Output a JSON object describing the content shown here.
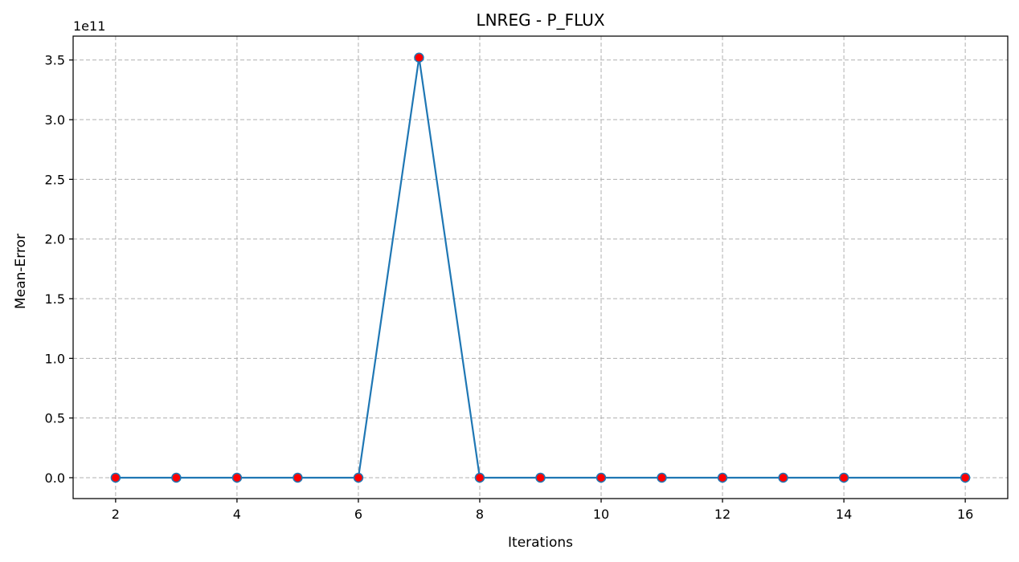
{
  "chart_data": {
    "type": "line",
    "title": "LNREG - P_FLUX",
    "xlabel": "Iterations",
    "ylabel": "Mean-Error",
    "y_offset_label": "1e11",
    "xlim": [
      1.3,
      16.7
    ],
    "ylim": [
      -0.175,
      3.7
    ],
    "x_ticks": [
      2,
      4,
      6,
      8,
      10,
      12,
      14,
      16
    ],
    "x_tick_labels": [
      "2",
      "4",
      "6",
      "8",
      "10",
      "12",
      "14",
      "16"
    ],
    "y_ticks": [
      0.0,
      0.5,
      1.0,
      1.5,
      2.0,
      2.5,
      3.0,
      3.5
    ],
    "y_tick_labels": [
      "0.0",
      "0.5",
      "1.0",
      "1.5",
      "2.0",
      "2.5",
      "3.0",
      "3.5"
    ],
    "grid": true,
    "series": [
      {
        "x": [
          2,
          3,
          4,
          5,
          6,
          7,
          8,
          9,
          10,
          11,
          12,
          13,
          14,
          16
        ],
        "y": [
          0,
          0,
          0,
          0,
          0,
          3.52,
          0,
          0,
          0,
          0,
          0,
          0,
          0,
          0
        ],
        "line_color": "#1f77b4",
        "marker_face_color": "#ff0000",
        "marker_edge_color": "#1f77b4"
      }
    ]
  }
}
